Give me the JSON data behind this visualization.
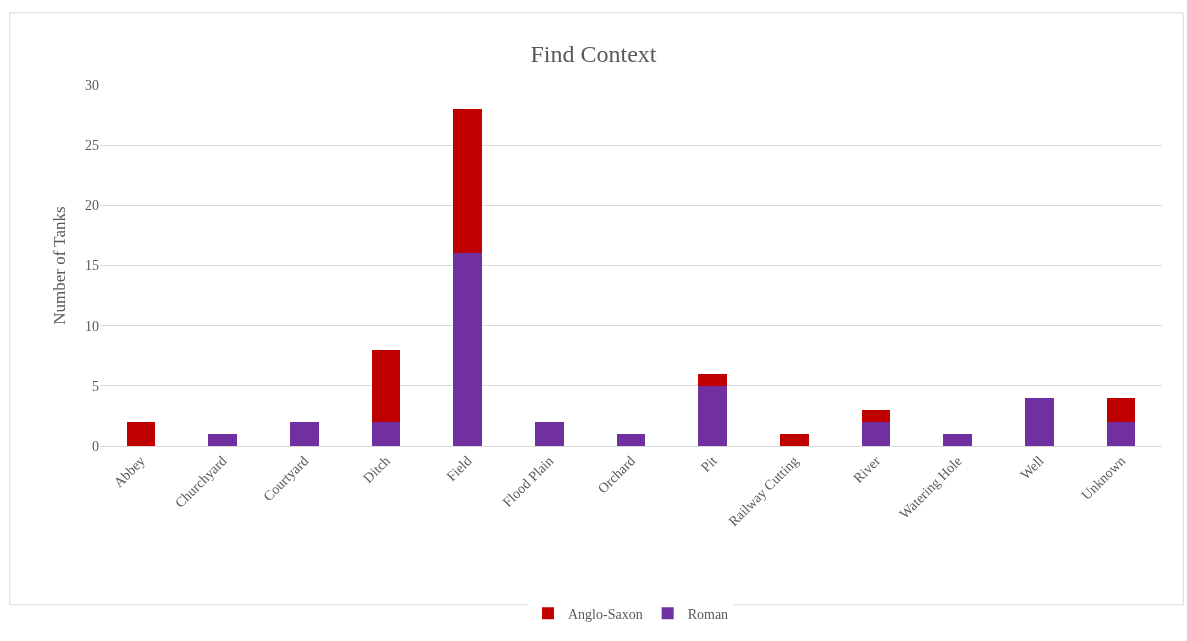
{
  "chart_data": {
    "type": "bar",
    "title": "Find Context",
    "ylabel": "Number of Tanks",
    "stacked": true,
    "categories": [
      "Abbey",
      "Churchyard",
      "Courtyard",
      "Ditch",
      "Field",
      "Flood Plain",
      "Orchard",
      "Pit",
      "Railway Cutting",
      "River",
      "Watering Hole",
      "Well",
      "Unknown"
    ],
    "series": [
      {
        "name": "Roman",
        "color": "#7030a0",
        "values": [
          0,
          1,
          2,
          2,
          16,
          2,
          1,
          5,
          0,
          2,
          1,
          4,
          2
        ]
      },
      {
        "name": "Anglo-Saxon",
        "color": "#c00000",
        "values": [
          2,
          0,
          0,
          6,
          12,
          0,
          0,
          1,
          1,
          1,
          0,
          0,
          2
        ]
      }
    ],
    "ylim": [
      0,
      30
    ],
    "yticks": [
      0,
      5,
      10,
      15,
      20,
      25,
      30
    ],
    "grid": "y",
    "legend": "bottom"
  }
}
